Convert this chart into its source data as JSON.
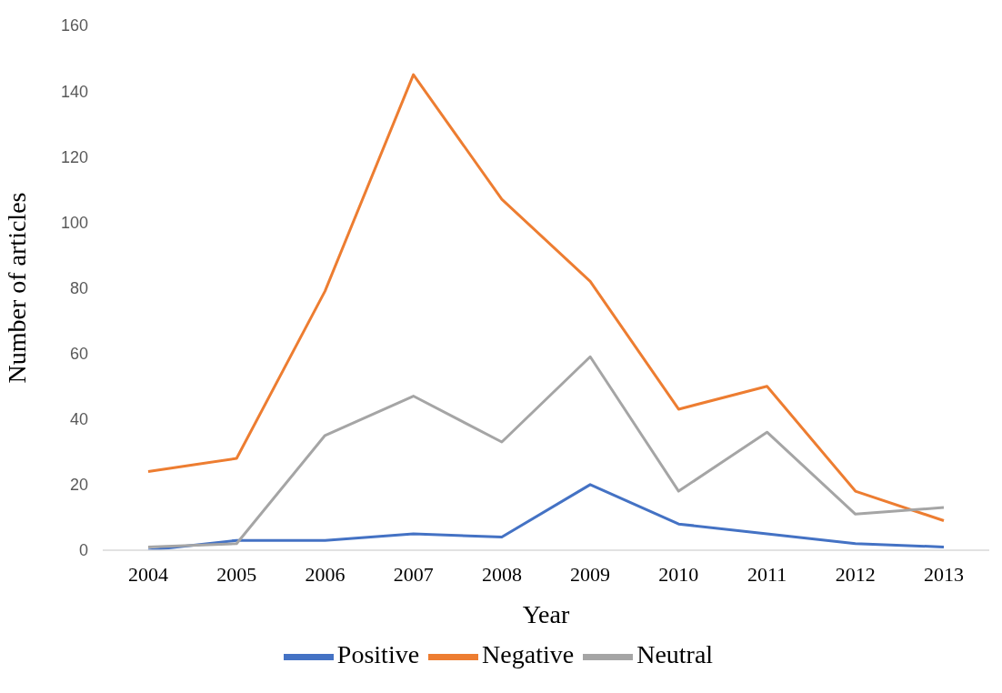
{
  "chart_data": {
    "type": "line",
    "xlabel": "Year",
    "ylabel": "Number of articles",
    "categories": [
      "2004",
      "2005",
      "2006",
      "2007",
      "2008",
      "2009",
      "2010",
      "2011",
      "2012",
      "2013"
    ],
    "series": [
      {
        "name": "Positive",
        "color": "#4472c4",
        "values": [
          0,
          3,
          3,
          5,
          4,
          20,
          8,
          5,
          2,
          1
        ]
      },
      {
        "name": "Negative",
        "color": "#ed7d31",
        "values": [
          24,
          28,
          79,
          145,
          107,
          82,
          43,
          50,
          18,
          9
        ]
      },
      {
        "name": "Neutral",
        "color": "#a5a5a5",
        "values": [
          1,
          2,
          35,
          47,
          33,
          59,
          18,
          36,
          11,
          13
        ]
      }
    ],
    "ylim": [
      0,
      160
    ],
    "yticks": [
      0,
      20,
      40,
      60,
      80,
      100,
      120,
      140,
      160
    ],
    "legend": "bottom",
    "marker": "none",
    "line_style": "solid"
  }
}
